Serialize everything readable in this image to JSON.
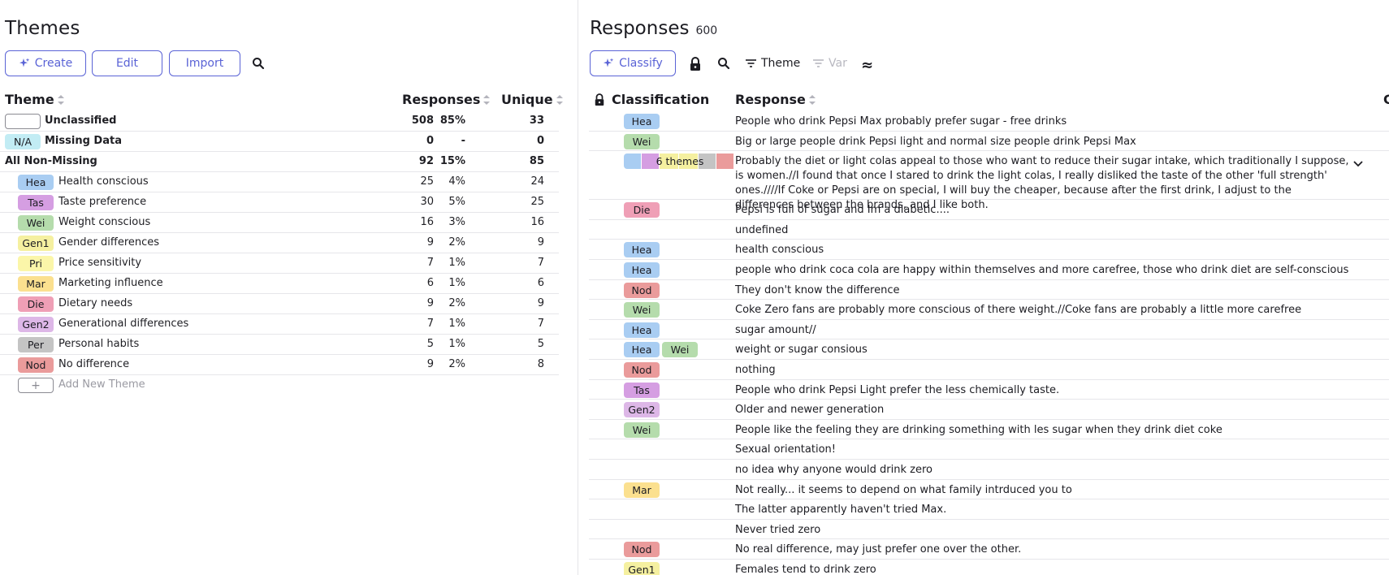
{
  "colors": {
    "accent": "#5a63d6",
    "Hea": "#a9cdf2",
    "Tas": "#d59ee2",
    "Wei": "#b5dcac",
    "Gen1": "#f5f0a0",
    "Pri": "#fbf6a9",
    "Mar": "#fbe08f",
    "Die": "#ef9fb6",
    "Gen2": "#ddb7e7",
    "Per": "#c4c4c4",
    "Nod": "#ea9b9b",
    "NA": "#c2ecf4"
  },
  "themes_panel": {
    "title": "Themes",
    "buttons": {
      "create": "Create",
      "edit": "Edit",
      "import": "Import"
    },
    "icons": {
      "create": "sparkle-icon",
      "search": "search-icon"
    },
    "columns": {
      "theme": "Theme",
      "responses": "Responses",
      "unique": "Unique"
    },
    "special_rows": [
      {
        "tag": "",
        "label": "Unclassified",
        "responses": "508",
        "pct": "85%",
        "unique": "33"
      },
      {
        "tag": "N/A",
        "label": "Missing Data",
        "responses": "0",
        "pct": "-",
        "unique": "0"
      },
      {
        "tag": "",
        "label": "All Non-Missing",
        "responses": "92",
        "pct": "15%",
        "unique": "85"
      }
    ],
    "themes": [
      {
        "tag": "Hea",
        "label": "Health conscious",
        "responses": "25",
        "pct": "4%",
        "unique": "24"
      },
      {
        "tag": "Tas",
        "label": "Taste preference",
        "responses": "30",
        "pct": "5%",
        "unique": "25"
      },
      {
        "tag": "Wei",
        "label": "Weight conscious",
        "responses": "16",
        "pct": "3%",
        "unique": "16"
      },
      {
        "tag": "Gen1",
        "label": "Gender differences",
        "responses": "9",
        "pct": "2%",
        "unique": "9"
      },
      {
        "tag": "Pri",
        "label": "Price sensitivity",
        "responses": "7",
        "pct": "1%",
        "unique": "7"
      },
      {
        "tag": "Mar",
        "label": "Marketing influence",
        "responses": "6",
        "pct": "1%",
        "unique": "6"
      },
      {
        "tag": "Die",
        "label": "Dietary needs",
        "responses": "9",
        "pct": "2%",
        "unique": "9"
      },
      {
        "tag": "Gen2",
        "label": "Generational differences",
        "responses": "7",
        "pct": "1%",
        "unique": "7"
      },
      {
        "tag": "Per",
        "label": "Personal habits",
        "responses": "5",
        "pct": "1%",
        "unique": "5"
      },
      {
        "tag": "Nod",
        "label": "No difference",
        "responses": "9",
        "pct": "2%",
        "unique": "8"
      }
    ],
    "add_new": {
      "icon": "+",
      "label": "Add New Theme"
    }
  },
  "responses_panel": {
    "title": "Responses",
    "count": "600",
    "toolbar": {
      "classify": "Classify",
      "theme": "Theme",
      "var": "Var",
      "approx": "≈"
    },
    "columns": {
      "classification": "Classification",
      "response": "Response",
      "clipped": "C"
    },
    "rows": [
      {
        "tags": [
          "Hea"
        ],
        "text": "People who drink Pepsi Max probably prefer sugar - free drinks"
      },
      {
        "tags": [
          "Wei"
        ],
        "text": "Big or large people drink Pepsi light and normal size people drink Pepsi Max"
      },
      {
        "tags": [
          "multi"
        ],
        "multi_label": "6 themes",
        "text": "Probably the diet or light colas appeal to those who want to reduce their sugar intake, which traditionally I suppose, is women.//I found that once I stared to drink the light colas, I really disliked the taste of the other 'full strength' ones.////If Coke or Pepsi are on special, I will buy the cheaper, because after the first drink, I adjust to the differences between the brands, and I like both.",
        "lines": 3
      },
      {
        "tags": [
          "Die"
        ],
        "text": "Pepsi is full of sugar and Im a diabetic...."
      },
      {
        "tags": [],
        "text": "undefined"
      },
      {
        "tags": [
          "Hea"
        ],
        "text": "health conscious"
      },
      {
        "tags": [
          "Hea"
        ],
        "text": "people who drink coca cola are happy within themselves and more carefree, those who drink diet are self-conscious"
      },
      {
        "tags": [
          "Nod"
        ],
        "text": "They don't know the difference"
      },
      {
        "tags": [
          "Wei"
        ],
        "text": "Coke Zero fans are probably more conscious of there weight.//Coke fans are probably a little more carefree"
      },
      {
        "tags": [
          "Hea"
        ],
        "text": "sugar amount//"
      },
      {
        "tags": [
          "Hea",
          "Wei"
        ],
        "text": "weight or sugar consious"
      },
      {
        "tags": [
          "Nod"
        ],
        "text": "nothing"
      },
      {
        "tags": [
          "Tas"
        ],
        "text": "People who drink Pepsi Light prefer the less chemically taste."
      },
      {
        "tags": [
          "Gen2"
        ],
        "text": "Older and newer generation"
      },
      {
        "tags": [
          "Wei"
        ],
        "text": "People like the feeling they are drinking something with les sugar when they drink diet coke"
      },
      {
        "tags": [],
        "text": "Sexual orientation!"
      },
      {
        "tags": [],
        "text": "no idea why anyone would drink zero"
      },
      {
        "tags": [
          "Mar"
        ],
        "text": "Not really... it seems to depend on what family intrduced you to"
      },
      {
        "tags": [],
        "text": "The latter apparently haven't tried Max."
      },
      {
        "tags": [],
        "text": "Never tried zero"
      },
      {
        "tags": [
          "Nod"
        ],
        "text": "No real difference, may just prefer one over the other."
      },
      {
        "tags": [
          "Gen1"
        ],
        "text": "Females tend to drink zero"
      }
    ]
  }
}
